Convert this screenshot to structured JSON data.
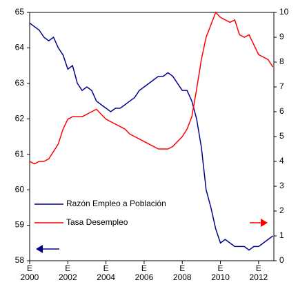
{
  "chart_data": {
    "type": "line",
    "x": [
      2000,
      2000.25,
      2000.5,
      2000.75,
      2001,
      2001.25,
      2001.5,
      2001.75,
      2002,
      2002.25,
      2002.5,
      2002.75,
      2003,
      2003.25,
      2003.5,
      2003.75,
      2004,
      2004.25,
      2004.5,
      2004.75,
      2005,
      2005.25,
      2005.5,
      2005.75,
      2006,
      2006.25,
      2006.5,
      2006.75,
      2007,
      2007.25,
      2007.5,
      2007.75,
      2008,
      2008.25,
      2008.5,
      2008.75,
      2009,
      2009.25,
      2009.5,
      2009.75,
      2010,
      2010.25,
      2010.5,
      2010.75,
      2011,
      2011.25,
      2011.5,
      2011.75,
      2012,
      2012.25,
      2012.5,
      2012.75
    ],
    "series": [
      {
        "name": "Razón Empleo a Población",
        "color": "#00008b",
        "axis": "y",
        "values": [
          64.7,
          64.6,
          64.5,
          64.3,
          64.2,
          64.3,
          64.0,
          63.8,
          63.4,
          63.5,
          63.0,
          62.8,
          62.9,
          62.8,
          62.5,
          62.4,
          62.3,
          62.2,
          62.3,
          62.3,
          62.4,
          62.5,
          62.6,
          62.8,
          62.9,
          63.0,
          63.1,
          63.2,
          63.2,
          63.3,
          63.2,
          63.0,
          62.8,
          62.8,
          62.5,
          62.0,
          61.2,
          60.0,
          59.5,
          58.9,
          58.5,
          58.6,
          58.5,
          58.4,
          58.4,
          58.4,
          58.3,
          58.4,
          58.4,
          58.5,
          58.6,
          58.7
        ]
      },
      {
        "name": "Tasa Desempleo",
        "color": "#ff0000",
        "axis": "y2",
        "values": [
          4.0,
          3.9,
          4.0,
          4.0,
          4.1,
          4.4,
          4.7,
          5.3,
          5.7,
          5.8,
          5.8,
          5.8,
          5.9,
          6.0,
          6.1,
          5.9,
          5.7,
          5.6,
          5.5,
          5.4,
          5.3,
          5.1,
          5.0,
          4.9,
          4.8,
          4.7,
          4.6,
          4.5,
          4.5,
          4.5,
          4.6,
          4.8,
          5.0,
          5.3,
          5.8,
          6.9,
          8.1,
          9.0,
          9.5,
          10.0,
          9.8,
          9.7,
          9.6,
          9.7,
          9.1,
          9.0,
          9.1,
          8.7,
          8.3,
          8.2,
          8.1,
          7.8
        ]
      }
    ],
    "xlim": [
      2000,
      2012.8
    ],
    "xticks": [
      {
        "value": 2000,
        "label": "E\n2000"
      },
      {
        "value": 2002,
        "label": "E\n2002"
      },
      {
        "value": 2004,
        "label": "E\n2004"
      },
      {
        "value": 2006,
        "label": "E\n2006"
      },
      {
        "value": 2008,
        "label": "E\n2008"
      },
      {
        "value": 2010,
        "label": "E\n2010"
      },
      {
        "value": 2012,
        "label": "E\n2012"
      }
    ],
    "ylim": [
      58,
      65
    ],
    "yticks": [
      58,
      59,
      60,
      61,
      62,
      63,
      64,
      65
    ],
    "y2lim": [
      0,
      10
    ],
    "y2ticks": [
      0,
      1,
      2,
      3,
      4,
      5,
      6,
      7,
      8,
      9,
      10
    ],
    "legend": "lower left"
  }
}
